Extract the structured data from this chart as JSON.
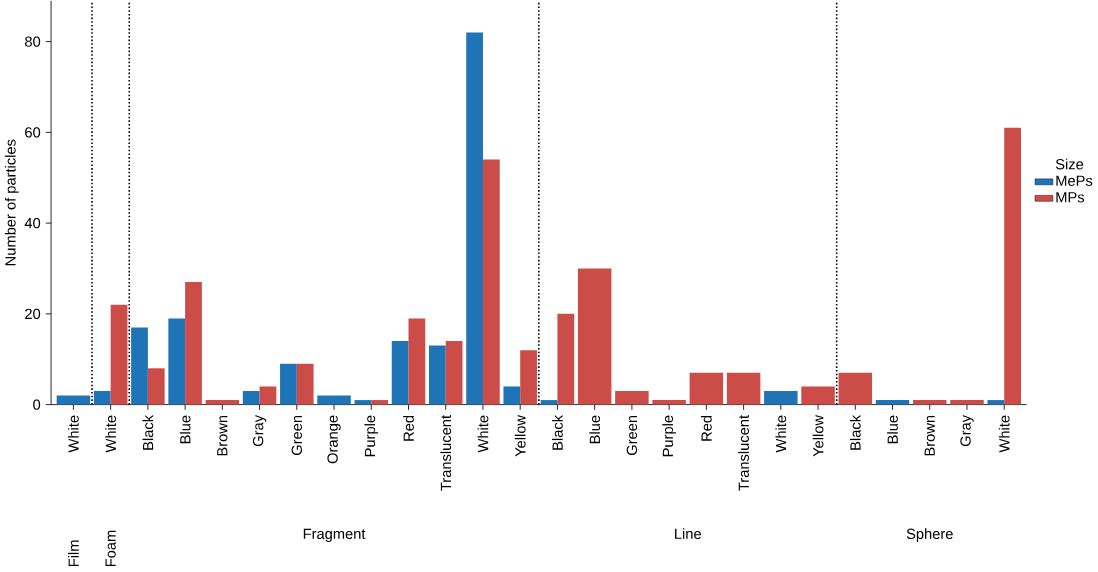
{
  "chart_data": {
    "type": "bar",
    "ylabel": "Number of particles",
    "legend_title": "Size",
    "legend": "right",
    "categories": [
      "White",
      "White",
      "Black",
      "Blue",
      "Brown",
      "Gray",
      "Green",
      "Orange",
      "Purple",
      "Red",
      "Translucent",
      "White",
      "Yellow",
      "Black",
      "Blue",
      "Green",
      "Purple",
      "Red",
      "Translucent",
      "White",
      "Yellow",
      "Black",
      "Blue",
      "Brown",
      "Gray",
      "White"
    ],
    "series": [
      {
        "name": "MePs",
        "color": "#1f74b8",
        "values": [
          2,
          3,
          17,
          19,
          null,
          3,
          9,
          2,
          1,
          14,
          13,
          82,
          4,
          1,
          null,
          null,
          null,
          null,
          null,
          3,
          null,
          null,
          1,
          null,
          null,
          1
        ]
      },
      {
        "name": "MPs",
        "color": "#cc4c47",
        "values": [
          null,
          22,
          8,
          27,
          1,
          4,
          9,
          null,
          1,
          19,
          14,
          54,
          12,
          20,
          30,
          3,
          1,
          7,
          7,
          null,
          4,
          7,
          null,
          1,
          1,
          61
        ]
      }
    ],
    "ylim": [
      0,
      89
    ],
    "yticks": [
      0,
      20,
      40,
      60,
      80
    ],
    "annotations": [
      "Film",
      "Foam",
      "Fragment",
      "Line",
      "Sphere"
    ]
  }
}
